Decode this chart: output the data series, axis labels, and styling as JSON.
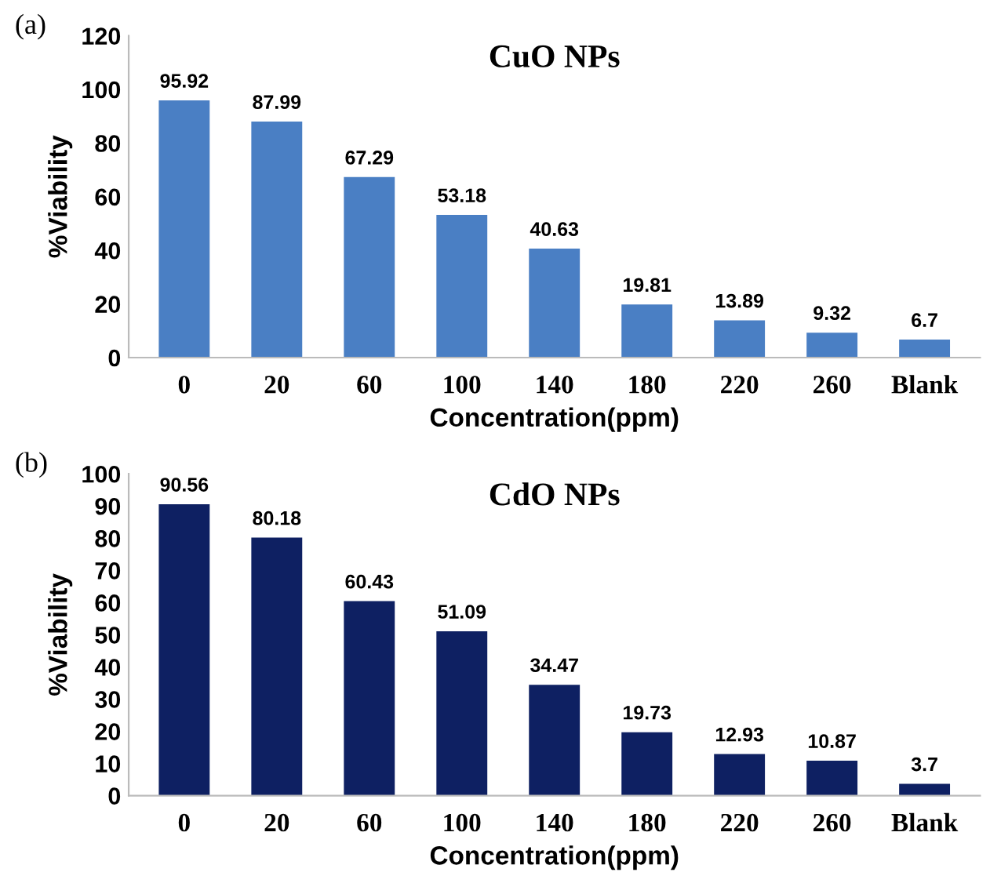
{
  "chart_data": [
    {
      "type": "bar",
      "title": "CuO NPs",
      "xlabel": "Concentration(ppm)",
      "ylabel": "%Viability",
      "annotations": [
        "(a)"
      ],
      "categories": [
        "0",
        "20",
        "60",
        "100",
        "140",
        "180",
        "220",
        "260",
        "Blank"
      ],
      "values": [
        95.92,
        87.99,
        67.29,
        53.18,
        40.63,
        19.81,
        13.89,
        9.32,
        6.7
      ],
      "color": "#4a7fc4",
      "ylim": [
        0,
        120
      ],
      "yticks": [
        0,
        20,
        40,
        60,
        80,
        100,
        120
      ],
      "data_labels": true,
      "grid": false,
      "legend": false
    },
    {
      "type": "bar",
      "title": "CdO NPs",
      "xlabel": "Concentration(ppm)",
      "ylabel": "%Viability",
      "annotations": [
        "(b)"
      ],
      "categories": [
        "0",
        "20",
        "60",
        "100",
        "140",
        "180",
        "220",
        "260",
        "Blank"
      ],
      "values": [
        90.56,
        80.18,
        60.43,
        51.09,
        34.47,
        19.73,
        12.93,
        10.87,
        3.7
      ],
      "color": "#0e2062",
      "ylim": [
        0,
        100
      ],
      "yticks": [
        0,
        10,
        20,
        30,
        40,
        50,
        60,
        70,
        80,
        90,
        100
      ],
      "data_labels": true,
      "grid": false,
      "legend": false
    }
  ]
}
